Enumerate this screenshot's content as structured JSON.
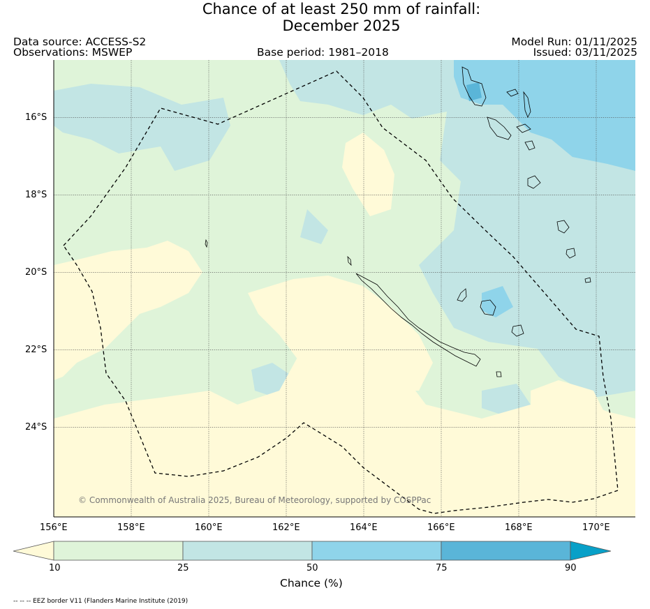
{
  "title": {
    "line1": "Chance of at least 250 mm of rainfall:",
    "line2": "December 2025"
  },
  "header": {
    "data_source": "Data source: ACCESS-S2",
    "observations": "Observations: MSWEP",
    "base_period": "Base period: 1981–2018",
    "model_run": "Model Run: 01/11/2025",
    "issued": "Issued: 03/11/2025"
  },
  "map": {
    "lat_labels": [
      "16°S",
      "18°S",
      "20°S",
      "22°S",
      "24°S"
    ],
    "lon_labels": [
      "156°E",
      "158°E",
      "160°E",
      "162°E",
      "164°E",
      "166°E",
      "168°E",
      "170°E"
    ],
    "extent": {
      "lon_min": 156,
      "lon_max": 171,
      "lat_north": 14.5,
      "lat_south": 26.3
    },
    "copyright": "© Commonwealth of Australia 2025, Bureau of Meteorology, supported by COSPPac",
    "eez_label": "EEZ border"
  },
  "legend": {
    "label": "Chance (%)",
    "ticks": [
      "10",
      "25",
      "50",
      "75",
      "90"
    ],
    "colors": {
      "below_10": "#fffad8",
      "10_25": "#dff4d9",
      "25_50": "#c2e5e4",
      "50_75": "#8fd4ea",
      "75_90": "#5ab5d8",
      "above_90": "#08a0c8"
    }
  },
  "footnote": "-- -- -- EEZ border V11 (Flanders Marine Institute (2019)"
}
